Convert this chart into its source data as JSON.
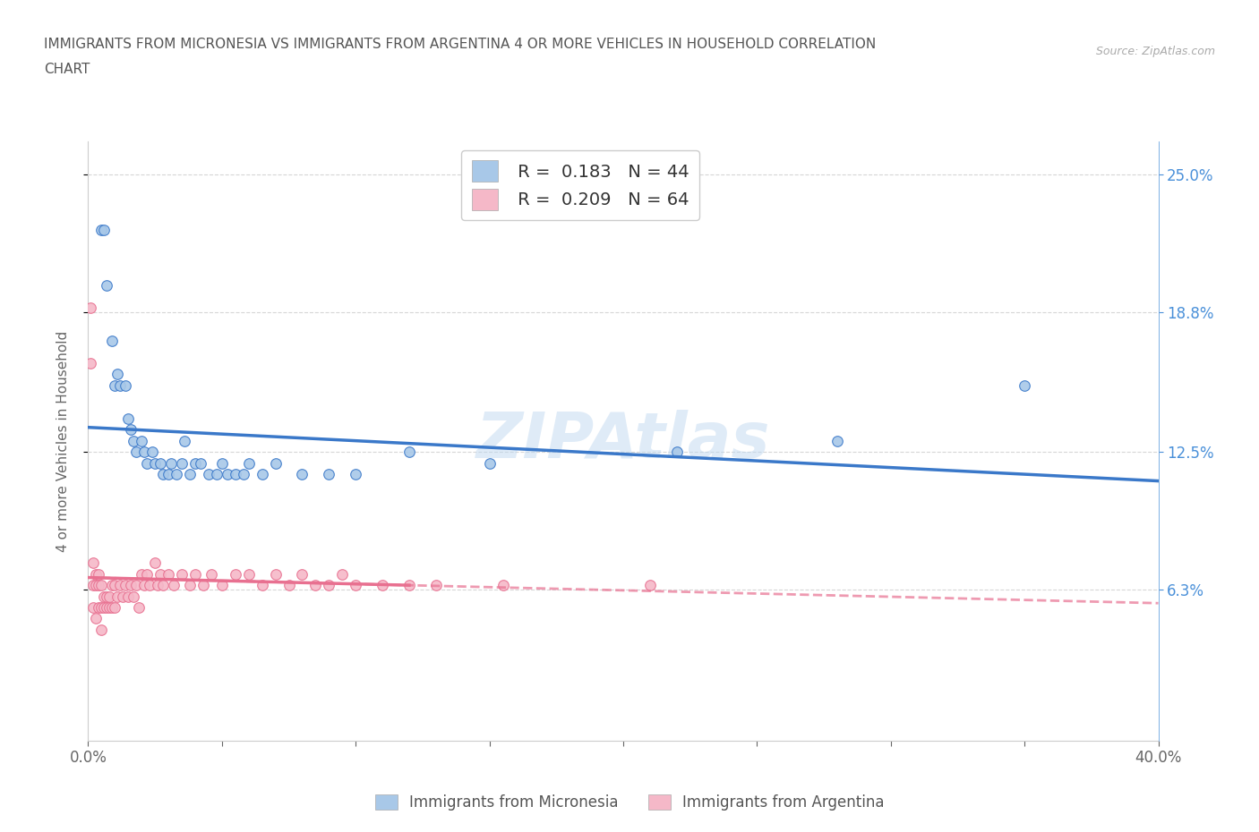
{
  "title_line1": "IMMIGRANTS FROM MICRONESIA VS IMMIGRANTS FROM ARGENTINA 4 OR MORE VEHICLES IN HOUSEHOLD CORRELATION",
  "title_line2": "CHART",
  "source_text": "Source: ZipAtlas.com",
  "ylabel": "4 or more Vehicles in Household",
  "xlim": [
    0.0,
    0.4
  ],
  "ylim": [
    -0.005,
    0.265
  ],
  "ytick_labels_right": [
    "6.3%",
    "12.5%",
    "18.8%",
    "25.0%"
  ],
  "ytick_values_right": [
    0.063,
    0.125,
    0.188,
    0.25
  ],
  "R_micronesia": 0.183,
  "N_micronesia": 44,
  "R_argentina": 0.209,
  "N_argentina": 64,
  "color_micronesia": "#a8c8e8",
  "color_argentina": "#f5b8c8",
  "color_micronesia_line": "#3a78c9",
  "color_argentina_line": "#e87090",
  "color_argentina_dashed": "#e87090",
  "watermark_text": "ZIPAtlas",
  "micronesia_x": [
    0.005,
    0.006,
    0.007,
    0.009,
    0.01,
    0.011,
    0.012,
    0.014,
    0.015,
    0.016,
    0.017,
    0.018,
    0.02,
    0.021,
    0.022,
    0.024,
    0.025,
    0.027,
    0.028,
    0.03,
    0.031,
    0.033,
    0.035,
    0.036,
    0.038,
    0.04,
    0.042,
    0.045,
    0.048,
    0.05,
    0.052,
    0.055,
    0.058,
    0.06,
    0.065,
    0.07,
    0.08,
    0.09,
    0.1,
    0.12,
    0.15,
    0.22,
    0.28,
    0.35
  ],
  "micronesia_y": [
    0.225,
    0.225,
    0.2,
    0.175,
    0.155,
    0.16,
    0.155,
    0.155,
    0.14,
    0.135,
    0.13,
    0.125,
    0.13,
    0.125,
    0.12,
    0.125,
    0.12,
    0.12,
    0.115,
    0.115,
    0.12,
    0.115,
    0.12,
    0.13,
    0.115,
    0.12,
    0.12,
    0.115,
    0.115,
    0.12,
    0.115,
    0.115,
    0.115,
    0.12,
    0.115,
    0.12,
    0.115,
    0.115,
    0.115,
    0.125,
    0.12,
    0.125,
    0.13,
    0.155
  ],
  "argentina_x": [
    0.001,
    0.001,
    0.002,
    0.002,
    0.002,
    0.003,
    0.003,
    0.003,
    0.004,
    0.004,
    0.004,
    0.005,
    0.005,
    0.005,
    0.006,
    0.006,
    0.007,
    0.007,
    0.008,
    0.008,
    0.009,
    0.009,
    0.01,
    0.01,
    0.011,
    0.012,
    0.013,
    0.014,
    0.015,
    0.016,
    0.017,
    0.018,
    0.019,
    0.02,
    0.021,
    0.022,
    0.023,
    0.025,
    0.026,
    0.027,
    0.028,
    0.03,
    0.032,
    0.035,
    0.038,
    0.04,
    0.043,
    0.046,
    0.05,
    0.055,
    0.06,
    0.065,
    0.07,
    0.075,
    0.08,
    0.085,
    0.09,
    0.095,
    0.1,
    0.11,
    0.12,
    0.13,
    0.155,
    0.21
  ],
  "argentina_y": [
    0.19,
    0.165,
    0.075,
    0.065,
    0.055,
    0.07,
    0.065,
    0.05,
    0.065,
    0.07,
    0.055,
    0.065,
    0.055,
    0.045,
    0.06,
    0.055,
    0.055,
    0.06,
    0.06,
    0.055,
    0.055,
    0.065,
    0.065,
    0.055,
    0.06,
    0.065,
    0.06,
    0.065,
    0.06,
    0.065,
    0.06,
    0.065,
    0.055,
    0.07,
    0.065,
    0.07,
    0.065,
    0.075,
    0.065,
    0.07,
    0.065,
    0.07,
    0.065,
    0.07,
    0.065,
    0.07,
    0.065,
    0.07,
    0.065,
    0.07,
    0.07,
    0.065,
    0.07,
    0.065,
    0.07,
    0.065,
    0.065,
    0.07,
    0.065,
    0.065,
    0.065,
    0.065,
    0.065,
    0.065
  ]
}
